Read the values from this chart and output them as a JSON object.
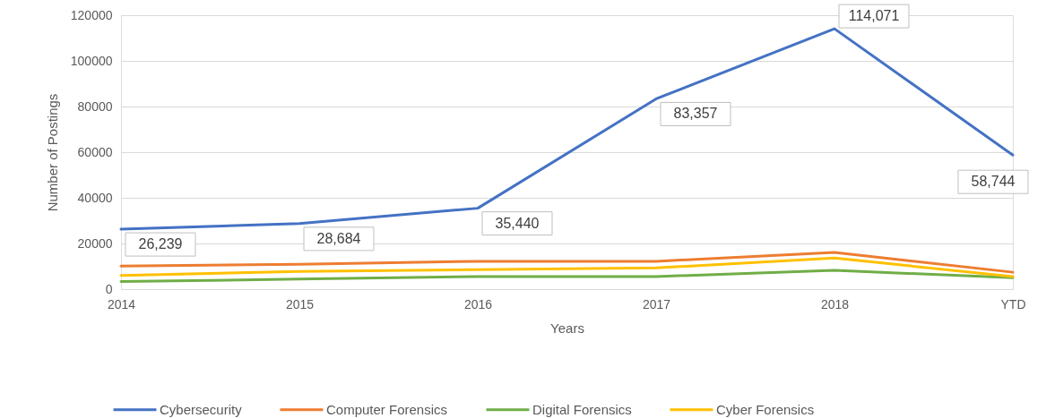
{
  "chart_data": {
    "type": "line",
    "xlabel": "Years",
    "ylabel": "Number of Postings",
    "categories": [
      "2014",
      "2015",
      "2016",
      "2017",
      "2018",
      "YTD"
    ],
    "ylim": [
      0,
      120000
    ],
    "yticks": [
      0,
      20000,
      40000,
      60000,
      80000,
      100000,
      120000
    ],
    "grid": "y",
    "legend": "bottom",
    "marker": "none",
    "line_style": "solid",
    "series": [
      {
        "name": "Cybersecurity",
        "color": "#4472c4",
        "values": [
          26239,
          28684,
          35440,
          83357,
          114071,
          58744
        ],
        "value_labels": [
          "26,239",
          "28,684",
          "35,440",
          "83,357",
          "114,071",
          "58,744"
        ]
      },
      {
        "name": "Computer Forensics",
        "color": "#ed7d31",
        "values": [
          10100,
          10900,
          12200,
          12200,
          16100,
          7400
        ]
      },
      {
        "name": "Digital Forensics",
        "color": "#70ad47",
        "values": [
          3300,
          4400,
          5500,
          5500,
          8200,
          5000
        ]
      },
      {
        "name": "Cyber Forensics",
        "color": "#ffc000",
        "values": [
          6000,
          7700,
          8500,
          9300,
          13600,
          5500
        ]
      }
    ]
  }
}
